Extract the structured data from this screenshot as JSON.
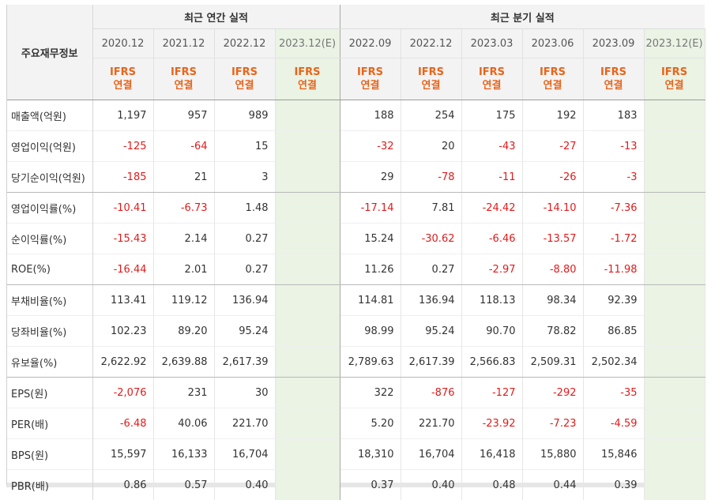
{
  "header": {
    "label_title": "주요재무정보",
    "annual_title": "최근 연간 실적",
    "quarter_title": "최근 분기 실적",
    "periods": [
      "2020.12",
      "2021.12",
      "2022.12",
      "2023.12(E)",
      "2022.09",
      "2022.12",
      "2023.03",
      "2023.06",
      "2023.09",
      "2023.12(E)"
    ],
    "basis_line1": "IFRS",
    "basis_line2": "연결"
  },
  "rows": [
    {
      "label": "매출액(억원)",
      "values": [
        "1,197",
        "957",
        "989",
        "",
        "188",
        "254",
        "175",
        "192",
        "183",
        ""
      ]
    },
    {
      "label": "영업이익(억원)",
      "values": [
        "-125",
        "-64",
        "15",
        "",
        "-32",
        "20",
        "-43",
        "-27",
        "-13",
        ""
      ]
    },
    {
      "label": "당기순이익(억원)",
      "values": [
        "-185",
        "21",
        "3",
        "",
        "29",
        "-78",
        "-11",
        "-26",
        "-3",
        ""
      ]
    },
    {
      "label": "영업이익률(%)",
      "values": [
        "-10.41",
        "-6.73",
        "1.48",
        "",
        "-17.14",
        "7.81",
        "-24.42",
        "-14.10",
        "-7.36",
        ""
      ]
    },
    {
      "label": "순이익률(%)",
      "values": [
        "-15.43",
        "2.14",
        "0.27",
        "",
        "15.24",
        "-30.62",
        "-6.46",
        "-13.57",
        "-1.72",
        ""
      ]
    },
    {
      "label": "ROE(%)",
      "values": [
        "-16.44",
        "2.01",
        "0.27",
        "",
        "11.26",
        "0.27",
        "-2.97",
        "-8.80",
        "-11.98",
        ""
      ]
    },
    {
      "label": "부채비율(%)",
      "values": [
        "113.41",
        "119.12",
        "136.94",
        "",
        "114.81",
        "136.94",
        "118.13",
        "98.34",
        "92.39",
        ""
      ]
    },
    {
      "label": "당좌비율(%)",
      "values": [
        "102.23",
        "89.20",
        "95.24",
        "",
        "98.99",
        "95.24",
        "90.70",
        "78.82",
        "86.85",
        ""
      ]
    },
    {
      "label": "유보율(%)",
      "values": [
        "2,622.92",
        "2,639.88",
        "2,617.39",
        "",
        "2,789.63",
        "2,617.39",
        "2,566.83",
        "2,509.31",
        "2,502.34",
        ""
      ]
    },
    {
      "label": "EPS(원)",
      "values": [
        "-2,076",
        "231",
        "30",
        "",
        "322",
        "-876",
        "-127",
        "-292",
        "-35",
        ""
      ]
    },
    {
      "label": "PER(배)",
      "values": [
        "-6.48",
        "40.06",
        "221.70",
        "",
        "5.20",
        "221.70",
        "-23.92",
        "-7.23",
        "-4.59",
        ""
      ]
    },
    {
      "label": "BPS(원)",
      "values": [
        "15,597",
        "16,133",
        "16,704",
        "",
        "18,310",
        "16,704",
        "16,418",
        "15,880",
        "15,846",
        ""
      ]
    },
    {
      "label": "PBR(배)",
      "values": [
        "0.86",
        "0.57",
        "0.40",
        "",
        "0.37",
        "0.40",
        "0.48",
        "0.44",
        "0.39",
        ""
      ]
    }
  ],
  "colors": {
    "negative": "#e01b1b",
    "basis_text": "#e8641a",
    "estimate_bg": "#eaf3e4",
    "header_bg": "#f3f3f3"
  }
}
